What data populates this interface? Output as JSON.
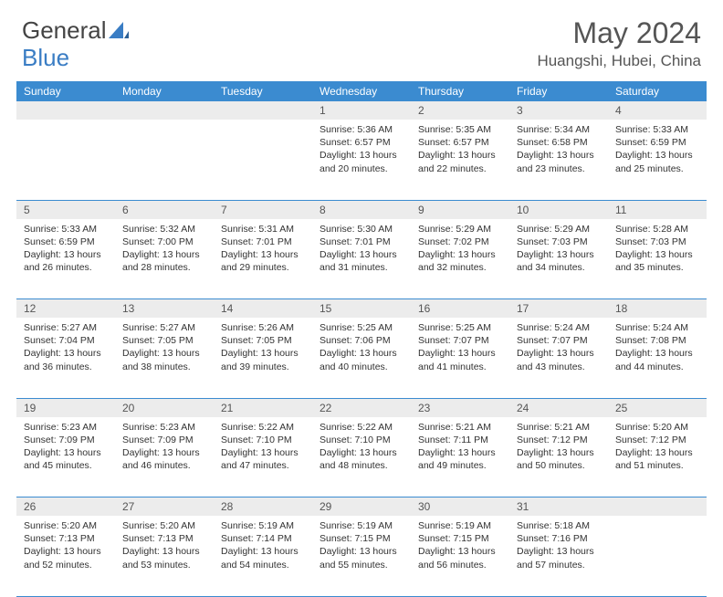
{
  "brand": {
    "part1": "General",
    "part2": "Blue"
  },
  "title": "May 2024",
  "location": "Huangshi, Hubei, China",
  "colors": {
    "header_bg": "#3b8bd0",
    "header_text": "#ffffff",
    "daynum_bg": "#ececec",
    "border": "#3b8bd0",
    "body_text": "#333333",
    "title_text": "#555555",
    "logo_gray": "#444444",
    "logo_blue": "#3a7dc4"
  },
  "weekdays": [
    "Sunday",
    "Monday",
    "Tuesday",
    "Wednesday",
    "Thursday",
    "Friday",
    "Saturday"
  ],
  "weeks": [
    [
      null,
      null,
      null,
      {
        "n": "1",
        "sr": "5:36 AM",
        "ss": "6:57 PM",
        "dl": "13 hours and 20 minutes."
      },
      {
        "n": "2",
        "sr": "5:35 AM",
        "ss": "6:57 PM",
        "dl": "13 hours and 22 minutes."
      },
      {
        "n": "3",
        "sr": "5:34 AM",
        "ss": "6:58 PM",
        "dl": "13 hours and 23 minutes."
      },
      {
        "n": "4",
        "sr": "5:33 AM",
        "ss": "6:59 PM",
        "dl": "13 hours and 25 minutes."
      }
    ],
    [
      {
        "n": "5",
        "sr": "5:33 AM",
        "ss": "6:59 PM",
        "dl": "13 hours and 26 minutes."
      },
      {
        "n": "6",
        "sr": "5:32 AM",
        "ss": "7:00 PM",
        "dl": "13 hours and 28 minutes."
      },
      {
        "n": "7",
        "sr": "5:31 AM",
        "ss": "7:01 PM",
        "dl": "13 hours and 29 minutes."
      },
      {
        "n": "8",
        "sr": "5:30 AM",
        "ss": "7:01 PM",
        "dl": "13 hours and 31 minutes."
      },
      {
        "n": "9",
        "sr": "5:29 AM",
        "ss": "7:02 PM",
        "dl": "13 hours and 32 minutes."
      },
      {
        "n": "10",
        "sr": "5:29 AM",
        "ss": "7:03 PM",
        "dl": "13 hours and 34 minutes."
      },
      {
        "n": "11",
        "sr": "5:28 AM",
        "ss": "7:03 PM",
        "dl": "13 hours and 35 minutes."
      }
    ],
    [
      {
        "n": "12",
        "sr": "5:27 AM",
        "ss": "7:04 PM",
        "dl": "13 hours and 36 minutes."
      },
      {
        "n": "13",
        "sr": "5:27 AM",
        "ss": "7:05 PM",
        "dl": "13 hours and 38 minutes."
      },
      {
        "n": "14",
        "sr": "5:26 AM",
        "ss": "7:05 PM",
        "dl": "13 hours and 39 minutes."
      },
      {
        "n": "15",
        "sr": "5:25 AM",
        "ss": "7:06 PM",
        "dl": "13 hours and 40 minutes."
      },
      {
        "n": "16",
        "sr": "5:25 AM",
        "ss": "7:07 PM",
        "dl": "13 hours and 41 minutes."
      },
      {
        "n": "17",
        "sr": "5:24 AM",
        "ss": "7:07 PM",
        "dl": "13 hours and 43 minutes."
      },
      {
        "n": "18",
        "sr": "5:24 AM",
        "ss": "7:08 PM",
        "dl": "13 hours and 44 minutes."
      }
    ],
    [
      {
        "n": "19",
        "sr": "5:23 AM",
        "ss": "7:09 PM",
        "dl": "13 hours and 45 minutes."
      },
      {
        "n": "20",
        "sr": "5:23 AM",
        "ss": "7:09 PM",
        "dl": "13 hours and 46 minutes."
      },
      {
        "n": "21",
        "sr": "5:22 AM",
        "ss": "7:10 PM",
        "dl": "13 hours and 47 minutes."
      },
      {
        "n": "22",
        "sr": "5:22 AM",
        "ss": "7:10 PM",
        "dl": "13 hours and 48 minutes."
      },
      {
        "n": "23",
        "sr": "5:21 AM",
        "ss": "7:11 PM",
        "dl": "13 hours and 49 minutes."
      },
      {
        "n": "24",
        "sr": "5:21 AM",
        "ss": "7:12 PM",
        "dl": "13 hours and 50 minutes."
      },
      {
        "n": "25",
        "sr": "5:20 AM",
        "ss": "7:12 PM",
        "dl": "13 hours and 51 minutes."
      }
    ],
    [
      {
        "n": "26",
        "sr": "5:20 AM",
        "ss": "7:13 PM",
        "dl": "13 hours and 52 minutes."
      },
      {
        "n": "27",
        "sr": "5:20 AM",
        "ss": "7:13 PM",
        "dl": "13 hours and 53 minutes."
      },
      {
        "n": "28",
        "sr": "5:19 AM",
        "ss": "7:14 PM",
        "dl": "13 hours and 54 minutes."
      },
      {
        "n": "29",
        "sr": "5:19 AM",
        "ss": "7:15 PM",
        "dl": "13 hours and 55 minutes."
      },
      {
        "n": "30",
        "sr": "5:19 AM",
        "ss": "7:15 PM",
        "dl": "13 hours and 56 minutes."
      },
      {
        "n": "31",
        "sr": "5:18 AM",
        "ss": "7:16 PM",
        "dl": "13 hours and 57 minutes."
      },
      null
    ]
  ],
  "labels": {
    "sunrise": "Sunrise:",
    "sunset": "Sunset:",
    "daylight": "Daylight:"
  }
}
